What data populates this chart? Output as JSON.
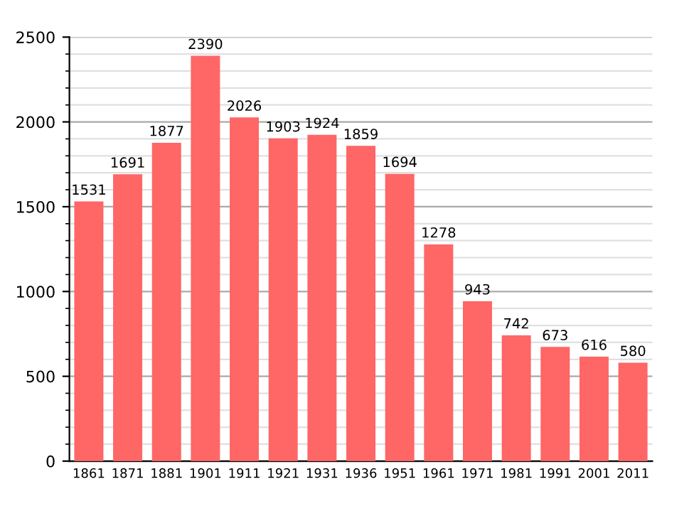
{
  "chart_data": {
    "type": "bar",
    "categories": [
      "1861",
      "1871",
      "1881",
      "1901",
      "1911",
      "1921",
      "1931",
      "1936",
      "1951",
      "1961",
      "1971",
      "1981",
      "1991",
      "2001",
      "2011"
    ],
    "values": [
      1531,
      1691,
      1877,
      2390,
      2026,
      1903,
      1924,
      1859,
      1694,
      1278,
      943,
      742,
      673,
      616,
      580
    ],
    "color": "#ff6666",
    "ylim": [
      0,
      2500
    ],
    "yticks": [
      0,
      500,
      1000,
      1500,
      2000,
      2500
    ],
    "grid": "y",
    "data_labels": true
  }
}
